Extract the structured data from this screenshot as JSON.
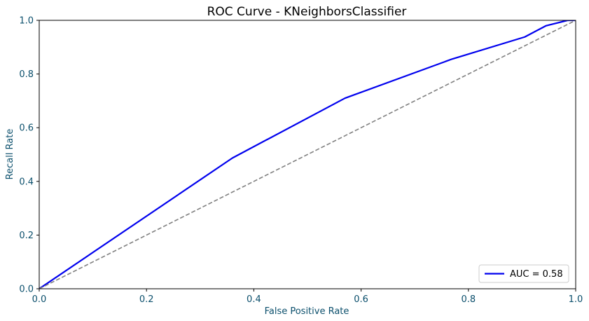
{
  "chart_data": {
    "type": "line",
    "title": "ROC Curve - KNeighborsClassifier",
    "xlabel": "False Positive Rate",
    "ylabel": "Recall Rate",
    "xlim": [
      0,
      1
    ],
    "ylim": [
      0,
      1
    ],
    "xticks": [
      "0.0",
      "0.2",
      "0.4",
      "0.6",
      "0.8",
      "1.0"
    ],
    "yticks": [
      "0.0",
      "0.2",
      "0.4",
      "0.6",
      "0.8",
      "1.0"
    ],
    "grid": false,
    "legend_position": "lower-right",
    "series": [
      {
        "name": "AUC = 0.58",
        "color": "#0000ee",
        "style": "solid",
        "x": [
          0.0,
          0.36,
          0.57,
          0.77,
          0.905,
          0.945,
          0.985,
          1.0
        ],
        "y": [
          0.0,
          0.487,
          0.71,
          0.856,
          0.938,
          0.98,
          1.0,
          1.0
        ]
      },
      {
        "color": "#808080",
        "style": "dashed",
        "x": [
          0.0,
          1.0
        ],
        "y": [
          0.0,
          1.0
        ]
      }
    ],
    "axis_text_color": "#0b4f6c",
    "title_color": "#000000"
  }
}
